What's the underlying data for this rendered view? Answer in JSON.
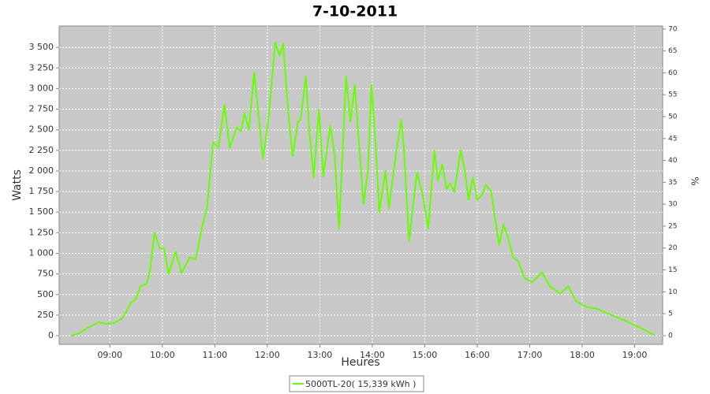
{
  "chart_data": {
    "type": "line",
    "title": "7-10-2011",
    "x_label": "Heures",
    "y_label": "Watts",
    "y2_label": "%",
    "x": [
      "08:16",
      "08:25",
      "08:34",
      "08:47",
      "08:55",
      "09:05",
      "09:14",
      "09:19",
      "09:24",
      "09:30",
      "09:35",
      "09:42",
      "09:46",
      "09:51",
      "09:57",
      "10:02",
      "10:07",
      "10:15",
      "10:22",
      "10:31",
      "10:38",
      "10:45",
      "10:51",
      "10:58",
      "11:04",
      "11:11",
      "11:17",
      "11:25",
      "11:30",
      "11:34",
      "11:39",
      "11:45",
      "11:55",
      "12:01",
      "12:09",
      "12:14",
      "12:18",
      "12:24",
      "12:29",
      "12:35",
      "12:38",
      "12:44",
      "12:48",
      "12:53",
      "12:59",
      "13:04",
      "13:12",
      "13:17",
      "13:22",
      "13:30",
      "13:35",
      "13:40",
      "13:45",
      "13:50",
      "13:55",
      "13:59",
      "14:04",
      "14:08",
      "14:15",
      "14:19",
      "14:27",
      "14:33",
      "14:36",
      "14:42",
      "14:51",
      "14:57",
      "15:04",
      "15:11",
      "15:15",
      "15:20",
      "15:25",
      "15:29",
      "15:34",
      "15:41",
      "15:46",
      "15:50",
      "15:55",
      "16:00",
      "16:05",
      "16:10",
      "16:16",
      "16:20",
      "16:25",
      "16:30",
      "16:35",
      "16:41",
      "16:47",
      "16:54",
      "17:03",
      "17:14",
      "17:23",
      "17:35",
      "17:44",
      "17:53",
      "18:04",
      "18:16",
      "18:25",
      "18:38",
      "18:50",
      "19:01",
      "19:10",
      "19:16",
      "19:23"
    ],
    "series": [
      {
        "name": "5000TL-20( 15,339 kWh )",
        "color": "#66ff00",
        "values": [
          0,
          30,
          90,
          165,
          145,
          155,
          210,
          300,
          400,
          450,
          600,
          630,
          800,
          1250,
          1060,
          1060,
          750,
          1020,
          760,
          950,
          930,
          1300,
          1550,
          2350,
          2280,
          2800,
          2280,
          2530,
          2480,
          2700,
          2500,
          3200,
          2150,
          2600,
          3560,
          3400,
          3550,
          2700,
          2180,
          2600,
          2620,
          3150,
          2500,
          1920,
          2750,
          1930,
          2550,
          2200,
          1300,
          3150,
          2600,
          3050,
          2300,
          1600,
          2000,
          3050,
          2300,
          1500,
          2000,
          1550,
          2200,
          2620,
          2300,
          1150,
          1980,
          1750,
          1300,
          2250,
          1880,
          2080,
          1780,
          1850,
          1750,
          2250,
          2000,
          1650,
          1920,
          1650,
          1700,
          1830,
          1750,
          1450,
          1100,
          1350,
          1200,
          950,
          900,
          700,
          650,
          770,
          600,
          510,
          600,
          420,
          350,
          330,
          290,
          230,
          180,
          120,
          80,
          40,
          5
        ]
      }
    ],
    "xlim": [
      "08:02",
      "19:32"
    ],
    "xticks": [
      "09:00",
      "10:00",
      "11:00",
      "12:00",
      "13:00",
      "14:00",
      "15:00",
      "16:00",
      "17:00",
      "18:00",
      "19:00"
    ],
    "ylim": [
      -105,
      3760
    ],
    "yticks": [
      0,
      250,
      500,
      750,
      {
        "value": 1000,
        "label": "1 000"
      },
      {
        "value": 1250,
        "label": "1 250"
      },
      {
        "value": 1500,
        "label": "1 500"
      },
      {
        "value": 1750,
        "label": "1 750"
      },
      {
        "value": 2000,
        "label": "2 000"
      },
      {
        "value": 2250,
        "label": "2 250"
      },
      {
        "value": 2500,
        "label": "2 500"
      },
      {
        "value": 2750,
        "label": "2 750"
      },
      {
        "value": 3000,
        "label": "3 000"
      },
      {
        "value": 3250,
        "label": "3 250"
      },
      {
        "value": 3500,
        "label": "3 500"
      }
    ],
    "y2lim": [
      -2,
      70.7
    ],
    "y2ticks": [
      0,
      5,
      10,
      15,
      20,
      25,
      30,
      35,
      40,
      45,
      50,
      55,
      60,
      65,
      70
    ],
    "grid": true,
    "legend": "bottom",
    "plot_background": "#c8c8c8"
  }
}
